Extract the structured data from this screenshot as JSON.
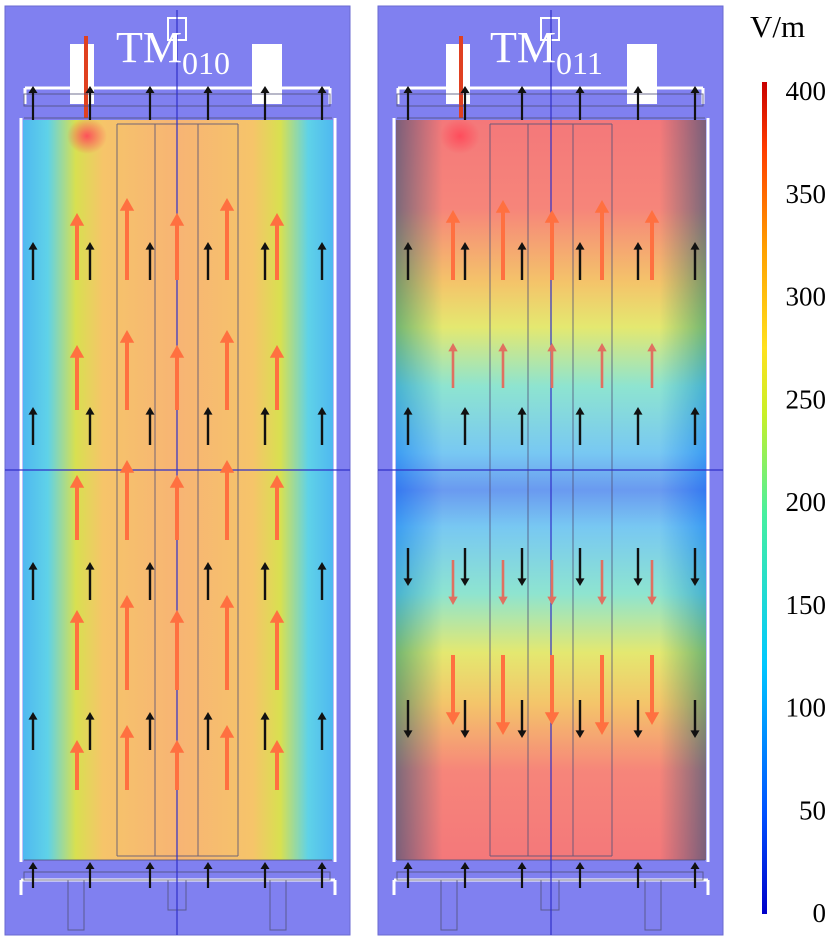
{
  "panels": [
    {
      "label_main": "TM",
      "label_sub": "010"
    },
    {
      "label_main": "TM",
      "label_sub": "011"
    }
  ],
  "colorbar": {
    "unit": "V/m",
    "ticks": [
      "400",
      "350",
      "300",
      "250",
      "200",
      "150",
      "100",
      "50",
      "0"
    ],
    "range": [
      0,
      400
    ],
    "colormap": [
      "#0000c8",
      "#0050ff",
      "#00c8ff",
      "#46f0a0",
      "#c8f028",
      "#ffe11e",
      "#ffa000",
      "#ff3c00",
      "#c80000"
    ]
  },
  "colors": {
    "background_region": "#8080f0",
    "arrow_dark": "#111111",
    "arrow_field": "#ff7040",
    "arrow_field_weak": "#e07060"
  }
}
